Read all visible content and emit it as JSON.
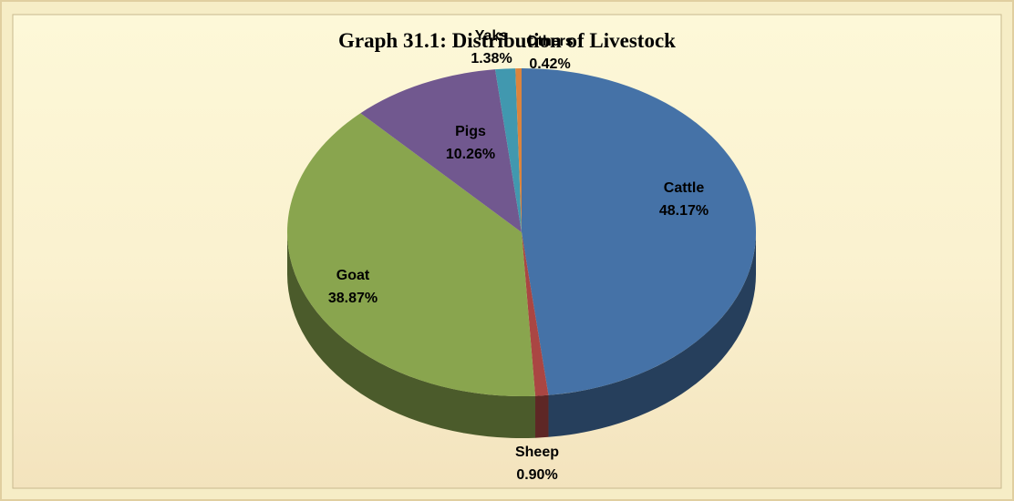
{
  "chart_data": {
    "type": "pie",
    "title": "Graph 31.1: Distribution of Livestock",
    "categories": [
      "Cattle",
      "Sheep",
      "Goat",
      "Pigs",
      "Yaks",
      "Others"
    ],
    "values": [
      48.17,
      0.9,
      38.87,
      10.26,
      1.38,
      0.42
    ],
    "value_labels": [
      "48.17%",
      "0.90%",
      "38.87%",
      "10.26%",
      "1.38%",
      "0.42%"
    ],
    "colors": [
      "#4572a7",
      "#aa4643",
      "#89a54e",
      "#71588f",
      "#4198af",
      "#db843d"
    ]
  }
}
